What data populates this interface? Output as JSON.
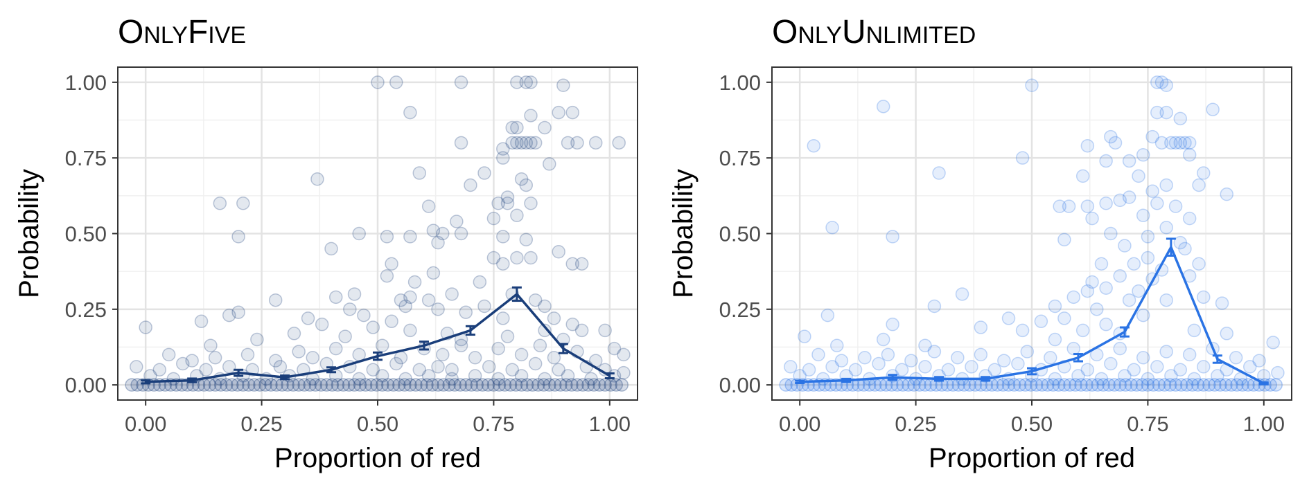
{
  "chart_data": [
    {
      "type": "scatter",
      "title": "OnlyFive",
      "xlabel": "Proportion of red",
      "ylabel": "Probability",
      "xlim": [
        -0.06,
        1.06
      ],
      "ylim": [
        -0.05,
        1.05
      ],
      "x_ticks": [
        0,
        0.25,
        0.5,
        0.75,
        1
      ],
      "x_tick_labels": [
        "0.00",
        "0.25",
        "0.50",
        "0.75",
        "1.00"
      ],
      "y_ticks": [
        0,
        0.25,
        0.5,
        0.75,
        1
      ],
      "y_tick_labels": [
        "0.00",
        "0.25",
        "0.50",
        "0.75",
        "1.00"
      ],
      "grid": true,
      "color": "#1a3e7a",
      "mean_series": {
        "x": [
          0,
          0.1,
          0.2,
          0.3,
          0.4,
          0.5,
          0.6,
          0.7,
          0.8,
          0.9,
          1.0
        ],
        "y": [
          0.01,
          0.015,
          0.04,
          0.025,
          0.05,
          0.095,
          0.13,
          0.18,
          0.3,
          0.12,
          0.03
        ],
        "err": [
          0.005,
          0.006,
          0.01,
          0.006,
          0.008,
          0.012,
          0.013,
          0.014,
          0.022,
          0.015,
          0.008
        ]
      },
      "points": [
        [
          0.8,
          1.0
        ],
        [
          0.82,
          1.0
        ],
        [
          0.83,
          1.0
        ],
        [
          0.5,
          1.0
        ],
        [
          0.54,
          1.0
        ],
        [
          0.68,
          1.0
        ],
        [
          0.9,
          0.99
        ],
        [
          0.57,
          0.9
        ],
        [
          0.83,
          0.89
        ],
        [
          0.89,
          0.9
        ],
        [
          0.92,
          0.9
        ],
        [
          0.79,
          0.85
        ],
        [
          0.8,
          0.85
        ],
        [
          0.86,
          0.85
        ],
        [
          0.79,
          0.8
        ],
        [
          0.8,
          0.8
        ],
        [
          0.81,
          0.8
        ],
        [
          0.82,
          0.8
        ],
        [
          0.83,
          0.8
        ],
        [
          0.84,
          0.8
        ],
        [
          0.68,
          0.8
        ],
        [
          0.77,
          0.78
        ],
        [
          0.91,
          0.8
        ],
        [
          0.93,
          0.8
        ],
        [
          0.97,
          0.8
        ],
        [
          1.02,
          0.8
        ],
        [
          0.77,
          0.75
        ],
        [
          0.87,
          0.73
        ],
        [
          0.73,
          0.7
        ],
        [
          0.81,
          0.68
        ],
        [
          0.59,
          0.7
        ],
        [
          0.37,
          0.68
        ],
        [
          0.82,
          0.66
        ],
        [
          0.7,
          0.66
        ],
        [
          0.78,
          0.62
        ],
        [
          0.16,
          0.6
        ],
        [
          0.21,
          0.6
        ],
        [
          0.76,
          0.6
        ],
        [
          0.78,
          0.6
        ],
        [
          0.83,
          0.6
        ],
        [
          0.61,
          0.59
        ],
        [
          0.67,
          0.54
        ],
        [
          0.75,
          0.55
        ],
        [
          0.8,
          0.56
        ],
        [
          0.2,
          0.49
        ],
        [
          0.62,
          0.51
        ],
        [
          0.64,
          0.5
        ],
        [
          0.68,
          0.5
        ],
        [
          0.57,
          0.49
        ],
        [
          0.46,
          0.5
        ],
        [
          0.52,
          0.49
        ],
        [
          0.77,
          0.49
        ],
        [
          0.82,
          0.48
        ],
        [
          0.63,
          0.47
        ],
        [
          0.4,
          0.45
        ],
        [
          0.89,
          0.44
        ],
        [
          0.75,
          0.42
        ],
        [
          0.77,
          0.4
        ],
        [
          0.8,
          0.42
        ],
        [
          0.83,
          0.42
        ],
        [
          0.53,
          0.4
        ],
        [
          0.92,
          0.4
        ],
        [
          0.94,
          0.4
        ],
        [
          0.62,
          0.37
        ],
        [
          0.52,
          0.36
        ],
        [
          0.58,
          0.34
        ],
        [
          0.72,
          0.34
        ],
        [
          0.45,
          0.3
        ],
        [
          0.41,
          0.29
        ],
        [
          0.55,
          0.28
        ],
        [
          0.57,
          0.29
        ],
        [
          0.61,
          0.28
        ],
        [
          0.66,
          0.3
        ],
        [
          0.79,
          0.3
        ],
        [
          0.84,
          0.28
        ],
        [
          0.86,
          0.26
        ],
        [
          0.28,
          0.28
        ],
        [
          0.2,
          0.24
        ],
        [
          0.18,
          0.23
        ],
        [
          0.35,
          0.22
        ],
        [
          0.44,
          0.25
        ],
        [
          0.47,
          0.23
        ],
        [
          0.53,
          0.21
        ],
        [
          0.56,
          0.26
        ],
        [
          0.63,
          0.25
        ],
        [
          0.69,
          0.24
        ],
        [
          0.73,
          0.26
        ],
        [
          0.77,
          0.22
        ],
        [
          0.88,
          0.22
        ],
        [
          0.92,
          0.2
        ],
        [
          0.12,
          0.21
        ],
        [
          0.38,
          0.2
        ],
        [
          0.49,
          0.19
        ],
        [
          0.0,
          0.19
        ],
        [
          0.57,
          0.18
        ],
        [
          0.65,
          0.17
        ],
        [
          0.86,
          0.18
        ],
        [
          0.94,
          0.18
        ],
        [
          0.99,
          0.18
        ],
        [
          0.32,
          0.17
        ],
        [
          0.43,
          0.16
        ],
        [
          0.68,
          0.15
        ],
        [
          0.78,
          0.16
        ],
        [
          0.9,
          0.15
        ],
        [
          0.24,
          0.15
        ],
        [
          0.14,
          0.13
        ],
        [
          0.05,
          0.1
        ],
        [
          0.1,
          0.08
        ],
        [
          0.15,
          0.09
        ],
        [
          0.22,
          0.1
        ],
        [
          0.28,
          0.08
        ],
        [
          0.33,
          0.11
        ],
        [
          0.36,
          0.09
        ],
        [
          0.41,
          0.12
        ],
        [
          0.46,
          0.1
        ],
        [
          0.51,
          0.13
        ],
        [
          0.55,
          0.09
        ],
        [
          0.6,
          0.12
        ],
        [
          0.64,
          0.1
        ],
        [
          0.68,
          0.13
        ],
        [
          0.71,
          0.09
        ],
        [
          0.76,
          0.12
        ],
        [
          0.81,
          0.1
        ],
        [
          0.85,
          0.13
        ],
        [
          0.88,
          0.09
        ],
        [
          0.93,
          0.11
        ],
        [
          0.97,
          0.08
        ],
        [
          1.01,
          0.12
        ],
        [
          1.03,
          0.1
        ],
        [
          -0.02,
          0.06
        ],
        [
          0.03,
          0.05
        ],
        [
          0.08,
          0.07
        ],
        [
          0.13,
          0.05
        ],
        [
          0.18,
          0.06
        ],
        [
          0.23,
          0.05
        ],
        [
          0.29,
          0.06
        ],
        [
          0.34,
          0.05
        ],
        [
          0.39,
          0.07
        ],
        [
          0.44,
          0.06
        ],
        [
          0.49,
          0.05
        ],
        [
          0.54,
          0.07
        ],
        [
          0.59,
          0.05
        ],
        [
          0.63,
          0.06
        ],
        [
          0.66,
          0.05
        ],
        [
          0.74,
          0.06
        ],
        [
          0.79,
          0.05
        ],
        [
          0.84,
          0.07
        ],
        [
          0.89,
          0.05
        ],
        [
          0.95,
          0.06
        ],
        [
          0.99,
          0.05
        ],
        [
          1.03,
          0.04
        ],
        [
          0.01,
          0.03
        ],
        [
          0.06,
          0.02
        ],
        [
          0.11,
          0.03
        ],
        [
          0.16,
          0.02
        ],
        [
          0.21,
          0.03
        ],
        [
          0.26,
          0.02
        ],
        [
          0.31,
          0.03
        ],
        [
          0.36,
          0.02
        ],
        [
          0.41,
          0.03
        ],
        [
          0.46,
          0.02
        ],
        [
          0.51,
          0.03
        ],
        [
          0.56,
          0.02
        ],
        [
          0.61,
          0.03
        ],
        [
          0.66,
          0.02
        ],
        [
          0.71,
          0.03
        ],
        [
          0.76,
          0.02
        ],
        [
          0.81,
          0.03
        ],
        [
          0.86,
          0.02
        ],
        [
          0.91,
          0.03
        ],
        [
          0.96,
          0.02
        ],
        [
          1.01,
          0.03
        ]
      ]
    },
    {
      "type": "scatter",
      "title": "OnlyUnlimited",
      "xlabel": "Proportion of red",
      "ylabel": "Probability",
      "xlim": [
        -0.06,
        1.06
      ],
      "ylim": [
        -0.05,
        1.05
      ],
      "x_ticks": [
        0,
        0.25,
        0.5,
        0.75,
        1
      ],
      "x_tick_labels": [
        "0.00",
        "0.25",
        "0.50",
        "0.75",
        "1.00"
      ],
      "y_ticks": [
        0,
        0.25,
        0.5,
        0.75,
        1
      ],
      "y_tick_labels": [
        "0.00",
        "0.25",
        "0.50",
        "0.75",
        "1.00"
      ],
      "grid": true,
      "color": "#2a73e4",
      "mean_series": {
        "x": [
          0,
          0.1,
          0.2,
          0.3,
          0.4,
          0.5,
          0.6,
          0.7,
          0.8,
          0.9,
          1.0
        ],
        "y": [
          0.01,
          0.015,
          0.025,
          0.02,
          0.02,
          0.045,
          0.09,
          0.175,
          0.455,
          0.085,
          0.005
        ],
        "err": [
          0.004,
          0.005,
          0.008,
          0.006,
          0.006,
          0.01,
          0.012,
          0.015,
          0.028,
          0.012,
          0.003
        ]
      },
      "points": [
        [
          0.77,
          1.0
        ],
        [
          0.78,
          1.0
        ],
        [
          0.79,
          0.99
        ],
        [
          0.5,
          0.99
        ],
        [
          0.18,
          0.92
        ],
        [
          0.89,
          0.91
        ],
        [
          0.77,
          0.9
        ],
        [
          0.79,
          0.9
        ],
        [
          0.82,
          0.88
        ],
        [
          0.76,
          0.82
        ],
        [
          0.78,
          0.8
        ],
        [
          0.8,
          0.8
        ],
        [
          0.81,
          0.8
        ],
        [
          0.82,
          0.8
        ],
        [
          0.83,
          0.8
        ],
        [
          0.84,
          0.8
        ],
        [
          0.67,
          0.82
        ],
        [
          0.68,
          0.8
        ],
        [
          0.03,
          0.79
        ],
        [
          0.62,
          0.79
        ],
        [
          0.48,
          0.75
        ],
        [
          0.66,
          0.74
        ],
        [
          0.71,
          0.74
        ],
        [
          0.74,
          0.76
        ],
        [
          0.84,
          0.76
        ],
        [
          0.3,
          0.7
        ],
        [
          0.61,
          0.69
        ],
        [
          0.73,
          0.69
        ],
        [
          0.87,
          0.7
        ],
        [
          0.79,
          0.66
        ],
        [
          0.76,
          0.64
        ],
        [
          0.86,
          0.66
        ],
        [
          0.71,
          0.62
        ],
        [
          0.92,
          0.63
        ],
        [
          0.66,
          0.6
        ],
        [
          0.69,
          0.61
        ],
        [
          0.56,
          0.59
        ],
        [
          0.58,
          0.59
        ],
        [
          0.62,
          0.59
        ],
        [
          0.77,
          0.6
        ],
        [
          0.81,
          0.59
        ],
        [
          0.07,
          0.52
        ],
        [
          0.63,
          0.55
        ],
        [
          0.74,
          0.56
        ],
        [
          0.79,
          0.52
        ],
        [
          0.84,
          0.55
        ],
        [
          0.2,
          0.49
        ],
        [
          0.57,
          0.48
        ],
        [
          0.67,
          0.5
        ],
        [
          0.75,
          0.49
        ],
        [
          0.82,
          0.47
        ],
        [
          0.7,
          0.46
        ],
        [
          0.83,
          0.45
        ],
        [
          0.75,
          0.42
        ],
        [
          0.65,
          0.4
        ],
        [
          0.72,
          0.4
        ],
        [
          0.86,
          0.4
        ],
        [
          0.78,
          0.38
        ],
        [
          0.69,
          0.36
        ],
        [
          0.63,
          0.34
        ],
        [
          0.76,
          0.35
        ],
        [
          0.84,
          0.36
        ],
        [
          0.66,
          0.32
        ],
        [
          0.73,
          0.31
        ],
        [
          0.35,
          0.3
        ],
        [
          0.59,
          0.29
        ],
        [
          0.62,
          0.31
        ],
        [
          0.71,
          0.28
        ],
        [
          0.79,
          0.28
        ],
        [
          0.87,
          0.29
        ],
        [
          0.91,
          0.27
        ],
        [
          0.29,
          0.26
        ],
        [
          0.55,
          0.26
        ],
        [
          0.64,
          0.25
        ],
        [
          0.74,
          0.23
        ],
        [
          0.06,
          0.23
        ],
        [
          0.45,
          0.22
        ],
        [
          0.52,
          0.21
        ],
        [
          0.57,
          0.22
        ],
        [
          0.66,
          0.2
        ],
        [
          0.2,
          0.2
        ],
        [
          0.39,
          0.19
        ],
        [
          0.48,
          0.18
        ],
        [
          0.61,
          0.18
        ],
        [
          0.69,
          0.17
        ],
        [
          0.85,
          0.18
        ],
        [
          0.92,
          0.17
        ],
        [
          0.01,
          0.16
        ],
        [
          0.18,
          0.15
        ],
        [
          0.55,
          0.15
        ],
        [
          0.27,
          0.13
        ],
        [
          0.08,
          0.13
        ],
        [
          0.04,
          0.1
        ],
        [
          0.09,
          0.08
        ],
        [
          0.14,
          0.09
        ],
        [
          0.19,
          0.1
        ],
        [
          0.24,
          0.08
        ],
        [
          0.29,
          0.11
        ],
        [
          0.34,
          0.09
        ],
        [
          0.39,
          0.1
        ],
        [
          0.44,
          0.08
        ],
        [
          0.49,
          0.11
        ],
        [
          0.54,
          0.09
        ],
        [
          0.59,
          0.12
        ],
        [
          0.64,
          0.1
        ],
        [
          0.69,
          0.12
        ],
        [
          0.74,
          0.09
        ],
        [
          0.79,
          0.11
        ],
        [
          0.84,
          0.1
        ],
        [
          0.89,
          0.12
        ],
        [
          0.94,
          0.09
        ],
        [
          0.99,
          0.08
        ],
        [
          1.02,
          0.14
        ],
        [
          -0.02,
          0.06
        ],
        [
          0.02,
          0.05
        ],
        [
          0.07,
          0.06
        ],
        [
          0.12,
          0.05
        ],
        [
          0.17,
          0.07
        ],
        [
          0.22,
          0.05
        ],
        [
          0.27,
          0.06
        ],
        [
          0.32,
          0.05
        ],
        [
          0.37,
          0.06
        ],
        [
          0.42,
          0.05
        ],
        [
          0.47,
          0.07
        ],
        [
          0.52,
          0.05
        ],
        [
          0.57,
          0.06
        ],
        [
          0.62,
          0.05
        ],
        [
          0.67,
          0.07
        ],
        [
          0.72,
          0.05
        ],
        [
          0.77,
          0.06
        ],
        [
          0.82,
          0.05
        ],
        [
          0.87,
          0.06
        ],
        [
          0.92,
          0.05
        ],
        [
          0.97,
          0.06
        ],
        [
          1.03,
          0.04
        ],
        [
          0.0,
          0.03
        ],
        [
          0.05,
          0.02
        ],
        [
          0.1,
          0.03
        ],
        [
          0.15,
          0.02
        ],
        [
          0.2,
          0.03
        ],
        [
          0.25,
          0.02
        ],
        [
          0.3,
          0.03
        ],
        [
          0.35,
          0.02
        ],
        [
          0.4,
          0.03
        ],
        [
          0.45,
          0.02
        ],
        [
          0.5,
          0.03
        ],
        [
          0.55,
          0.02
        ],
        [
          0.6,
          0.03
        ],
        [
          0.65,
          0.02
        ],
        [
          0.7,
          0.03
        ],
        [
          0.75,
          0.02
        ],
        [
          0.8,
          0.03
        ],
        [
          0.85,
          0.02
        ],
        [
          0.9,
          0.03
        ],
        [
          0.95,
          0.02
        ],
        [
          1.0,
          0.03
        ]
      ]
    }
  ]
}
